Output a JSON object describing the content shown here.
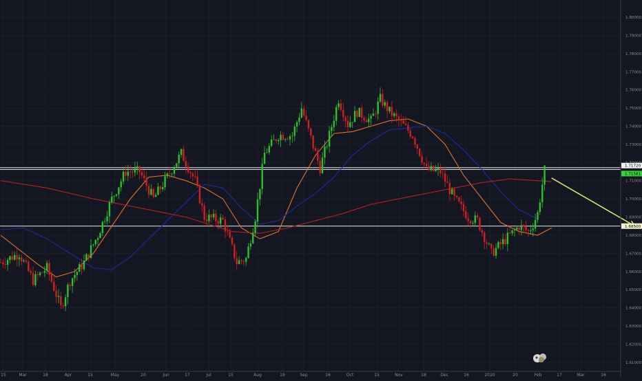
{
  "chart_data": {
    "type": "candlestick",
    "ylim": [
      1.605,
      1.8095
    ],
    "y_ticks": [
      "1.80000",
      "1.79000",
      "1.78000",
      "1.77000",
      "1.76000",
      "1.75000",
      "1.74000",
      "1.73000",
      "1.72000",
      "1.71000",
      "1.70000",
      "1.69000",
      "1.68000",
      "1.67000",
      "1.66000",
      "1.65000",
      "1.64000",
      "1.63000",
      "1.62000",
      "1.61000"
    ],
    "x_ticks": [
      "15",
      "Mar",
      "18",
      "Apr",
      "15",
      "May",
      "20",
      "Jun",
      "17",
      "Jul",
      "15",
      "Aug",
      "19",
      "Sep",
      "16",
      "Oct",
      "15",
      "Nov",
      "18",
      "Dec",
      "16",
      "2020",
      "20",
      "Feb",
      "17",
      "Mar",
      "16"
    ],
    "price_labels": [
      {
        "text": "1.71720",
        "value": 1.7172,
        "style": "white"
      },
      {
        "text": "1.71581",
        "value": 1.71581,
        "style": "green"
      },
      {
        "text": "1.68500",
        "value": 1.685,
        "style": "yellow"
      }
    ],
    "horizontal_levels": [
      1.7172,
      1.7162,
      1.685
    ],
    "moving_averages": [
      {
        "color": "#e0742a",
        "points": [
          [
            0,
            1.68
          ],
          [
            8,
            1.672
          ],
          [
            16,
            1.664
          ],
          [
            24,
            1.657
          ],
          [
            32,
            1.66
          ],
          [
            40,
            1.67
          ],
          [
            48,
            1.685
          ],
          [
            56,
            1.7
          ],
          [
            64,
            1.712
          ],
          [
            72,
            1.713
          ],
          [
            80,
            1.71
          ],
          [
            88,
            1.706
          ],
          [
            96,
            1.7
          ],
          [
            104,
            1.684
          ],
          [
            112,
            1.678
          ],
          [
            120,
            1.682
          ],
          [
            128,
            1.706
          ],
          [
            136,
            1.724
          ],
          [
            144,
            1.736
          ],
          [
            152,
            1.737
          ],
          [
            160,
            1.74
          ],
          [
            168,
            1.743
          ],
          [
            176,
            1.744
          ],
          [
            184,
            1.74
          ],
          [
            192,
            1.73
          ],
          [
            200,
            1.713
          ],
          [
            208,
            1.7
          ],
          [
            216,
            1.687
          ],
          [
            224,
            1.682
          ],
          [
            232,
            1.68
          ],
          [
            238,
            1.684
          ]
        ]
      },
      {
        "color": "#1c2a9c",
        "points": [
          [
            0,
            1.683
          ],
          [
            10,
            1.684
          ],
          [
            20,
            1.678
          ],
          [
            30,
            1.67
          ],
          [
            40,
            1.662
          ],
          [
            48,
            1.661
          ],
          [
            56,
            1.668
          ],
          [
            64,
            1.678
          ],
          [
            72,
            1.688
          ],
          [
            80,
            1.698
          ],
          [
            88,
            1.708
          ],
          [
            96,
            1.706
          ],
          [
            104,
            1.695
          ],
          [
            112,
            1.686
          ],
          [
            120,
            1.688
          ],
          [
            128,
            1.696
          ],
          [
            136,
            1.703
          ],
          [
            144,
            1.712
          ],
          [
            152,
            1.724
          ],
          [
            160,
            1.732
          ],
          [
            168,
            1.738
          ],
          [
            176,
            1.739
          ],
          [
            184,
            1.74
          ],
          [
            192,
            1.736
          ],
          [
            200,
            1.727
          ],
          [
            208,
            1.716
          ],
          [
            216,
            1.704
          ],
          [
            224,
            1.694
          ],
          [
            232,
            1.689
          ]
        ]
      },
      {
        "color": "#b81f1f",
        "points": [
          [
            0,
            1.71
          ],
          [
            20,
            1.706
          ],
          [
            40,
            1.7
          ],
          [
            60,
            1.695
          ],
          [
            72,
            1.692
          ],
          [
            80,
            1.69
          ],
          [
            90,
            1.686
          ],
          [
            100,
            1.682
          ],
          [
            112,
            1.681
          ],
          [
            124,
            1.684
          ],
          [
            136,
            1.688
          ],
          [
            148,
            1.692
          ],
          [
            160,
            1.697
          ],
          [
            172,
            1.7
          ],
          [
            184,
            1.703
          ],
          [
            196,
            1.706
          ],
          [
            208,
            1.709
          ],
          [
            220,
            1.711
          ],
          [
            232,
            1.71
          ],
          [
            238,
            1.7095
          ]
        ]
      }
    ],
    "arrow": {
      "from": [
        238,
        1.7115
      ],
      "to": [
        274,
        1.685
      ],
      "color": "#d7e36a"
    }
  }
}
